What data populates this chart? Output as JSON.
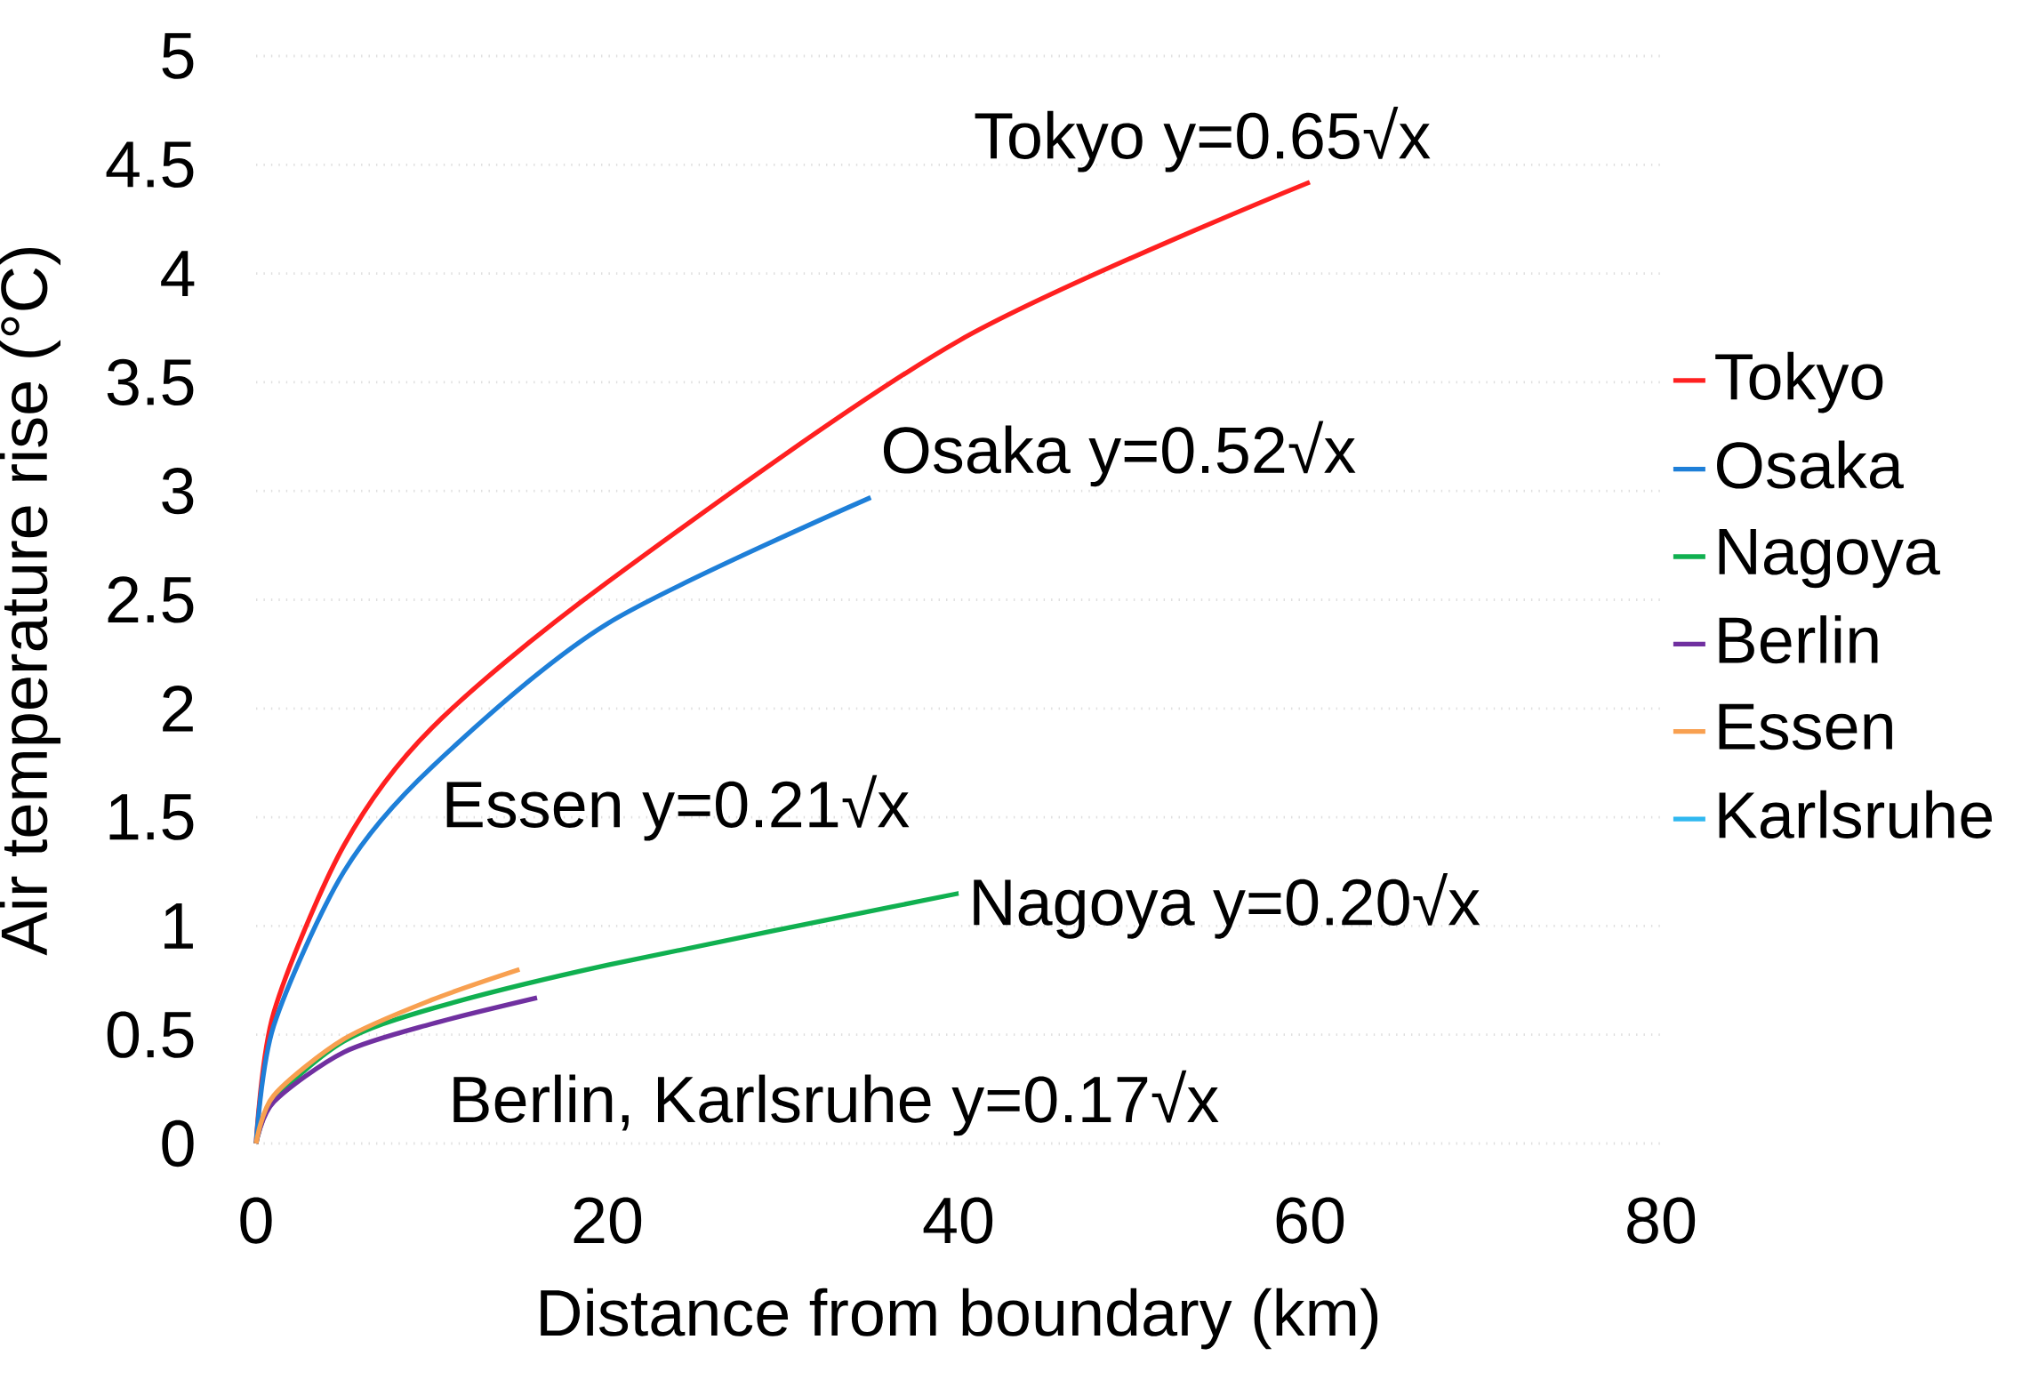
{
  "chart_data": {
    "type": "line",
    "xlabel": "Distance from boundary (km)",
    "ylabel": "Air temperature rise (°C)",
    "xlim": [
      0,
      80
    ],
    "xticks": [
      0,
      20,
      40,
      60,
      80
    ],
    "ylim": [
      0,
      5
    ],
    "yticks": [
      0,
      0.5,
      1,
      1.5,
      2,
      2.5,
      3,
      3.5,
      4,
      4.5,
      5
    ],
    "grid": "y",
    "legend": "right",
    "line_style": "solid",
    "marker": "none",
    "series": [
      {
        "name": "Tokyo",
        "color": "#ff2020",
        "x": [
          0,
          1,
          5,
          10,
          20,
          40,
          60
        ],
        "values": [
          0,
          0.6,
          1.37,
          1.91,
          2.58,
          3.69,
          4.42
        ]
      },
      {
        "name": "Osaka",
        "color": "#1e7fd8",
        "x": [
          0,
          1,
          5,
          10,
          20,
          35
        ],
        "values": [
          0,
          0.54,
          1.25,
          1.73,
          2.39,
          2.97
        ]
      },
      {
        "name": "Nagoya",
        "color": "#10b050",
        "x": [
          0,
          1,
          5,
          10,
          20,
          40
        ],
        "values": [
          0,
          0.2,
          0.47,
          0.62,
          0.82,
          1.15
        ]
      },
      {
        "name": "Berlin",
        "color": "#7030a0",
        "x": [
          0,
          1,
          5,
          10,
          16
        ],
        "values": [
          0,
          0.19,
          0.42,
          0.55,
          0.67
        ]
      },
      {
        "name": "Essen",
        "color": "#f8a050",
        "x": [
          0,
          1,
          5,
          10,
          15
        ],
        "values": [
          0,
          0.22,
          0.48,
          0.66,
          0.8
        ]
      },
      {
        "name": "Karlsruhe",
        "color": "#30b8f0"
      }
    ],
    "annotations": [
      {
        "text": "Tokyo y=0.65√x",
        "x": 60,
        "y": 4.42
      },
      {
        "text": "Osaka y=0.52√x",
        "x": 35,
        "y": 2.97
      },
      {
        "text": "Essen y=0.21√x",
        "x": 15,
        "y": 0.8
      },
      {
        "text": "Nagoya y=0.20√x",
        "x": 40,
        "y": 1.15
      },
      {
        "text": "Berlin, Karlsruhe y=0.17√x",
        "x": 16,
        "y": 0.67
      }
    ]
  }
}
